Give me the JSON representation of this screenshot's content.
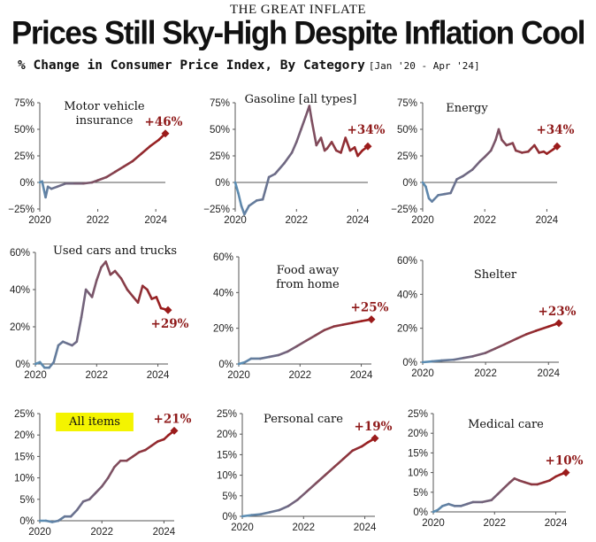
{
  "header": {
    "kicker": "THE GREAT INFLATE",
    "title": "Prices Still Sky-High Despite Inflation Cool",
    "subtitle": "% Change in Consumer Price Index, By Category",
    "date_range": "[Jan '20 - Apr '24]"
  },
  "colors": {
    "start": "#5b8db3",
    "end": "#9b1b1b",
    "highlight": "#f4f400",
    "axis": "#555555"
  },
  "chart_data": [
    {
      "type": "line",
      "title": "Motor vehicle insurance",
      "title_lines": [
        "Motor vehicle",
        "insurance"
      ],
      "xlim": [
        2020,
        2024.33
      ],
      "xticks": [
        "2020",
        "2022",
        "2024"
      ],
      "ylim": [
        -25,
        75
      ],
      "yticks": [
        -25,
        0,
        25,
        50,
        75
      ],
      "yticklabels": [
        "−25%",
        "0%",
        "25%",
        "50%",
        "75%"
      ],
      "end_label": "+46%",
      "x": [
        2020,
        2020.08,
        2020.2,
        2020.28,
        2020.4,
        2020.6,
        2020.9,
        2021.2,
        2021.5,
        2021.8,
        2022,
        2022.3,
        2022.6,
        2022.9,
        2023.2,
        2023.5,
        2023.8,
        2024.1,
        2024.33
      ],
      "y": [
        0,
        1,
        -14,
        -4,
        -6,
        -4,
        -1,
        -1,
        -1,
        0,
        2,
        5,
        10,
        15,
        20,
        27,
        34,
        40,
        46
      ]
    },
    {
      "type": "line",
      "title": "Gasoline [all types]",
      "title_lines": [
        "Gasoline [all types]"
      ],
      "xlim": [
        2020,
        2024.33
      ],
      "xticks": [
        "2020",
        "2022",
        "2024"
      ],
      "ylim": [
        -25,
        75
      ],
      "yticks": [
        -25,
        0,
        25,
        50,
        75
      ],
      "yticklabels": [
        "−25%",
        "0%",
        "25%",
        "50%",
        "75%"
      ],
      "end_label": "+34%",
      "x": [
        2020,
        2020.1,
        2020.2,
        2020.3,
        2020.45,
        2020.7,
        2020.9,
        2021.1,
        2021.3,
        2021.6,
        2021.85,
        2022,
        2022.15,
        2022.3,
        2022.42,
        2022.5,
        2022.65,
        2022.8,
        2022.92,
        2023,
        2023.15,
        2023.3,
        2023.45,
        2023.6,
        2023.75,
        2023.9,
        2024,
        2024.15,
        2024.33
      ],
      "y": [
        0,
        -10,
        -22,
        -30,
        -22,
        -17,
        -16,
        5,
        8,
        18,
        28,
        38,
        50,
        62,
        72,
        58,
        35,
        42,
        30,
        32,
        38,
        30,
        28,
        42,
        30,
        33,
        25,
        30,
        34
      ]
    },
    {
      "type": "line",
      "title": "Energy",
      "title_lines": [
        "Energy"
      ],
      "xlim": [
        2020,
        2024.33
      ],
      "xticks": [
        "2020",
        "2022",
        "2024"
      ],
      "ylim": [
        -25,
        75
      ],
      "yticks": [
        -25,
        0,
        25,
        50,
        75
      ],
      "yticklabels": [
        "−25%",
        "0%",
        "25%",
        "50%",
        "75%"
      ],
      "end_label": "+34%",
      "x": [
        2020,
        2020.1,
        2020.2,
        2020.3,
        2020.5,
        2020.7,
        2020.9,
        2021.1,
        2021.3,
        2021.6,
        2021.85,
        2022,
        2022.2,
        2022.35,
        2022.45,
        2022.55,
        2022.7,
        2022.9,
        2023,
        2023.2,
        2023.4,
        2023.6,
        2023.75,
        2023.9,
        2024,
        2024.2,
        2024.33
      ],
      "y": [
        0,
        -4,
        -15,
        -18,
        -12,
        -11,
        -10,
        3,
        6,
        12,
        20,
        24,
        30,
        40,
        50,
        40,
        35,
        37,
        30,
        28,
        29,
        35,
        28,
        29,
        27,
        31,
        34
      ]
    },
    {
      "type": "line",
      "title": "Used cars and trucks",
      "title_lines": [
        "Used cars and trucks"
      ],
      "xlim": [
        2020,
        2024.33
      ],
      "xticks": [
        "2020",
        "2022",
        "2024"
      ],
      "ylim": [
        0,
        60
      ],
      "yticks": [
        0,
        20,
        40,
        60
      ],
      "yticklabels": [
        "0%",
        "20%",
        "40%",
        "60%"
      ],
      "end_label": "+29%",
      "x": [
        2020,
        2020.15,
        2020.3,
        2020.45,
        2020.6,
        2020.75,
        2020.9,
        2021.05,
        2021.2,
        2021.35,
        2021.5,
        2021.65,
        2021.75,
        2021.85,
        2022,
        2022.15,
        2022.3,
        2022.45,
        2022.6,
        2022.8,
        2023,
        2023.2,
        2023.35,
        2023.5,
        2023.65,
        2023.8,
        2023.95,
        2024.1,
        2024.33
      ],
      "y": [
        0,
        1,
        -2,
        -2,
        1,
        10,
        12,
        11,
        10,
        12,
        25,
        40,
        38,
        36,
        45,
        52,
        55,
        48,
        50,
        46,
        40,
        36,
        33,
        42,
        40,
        35,
        36,
        30,
        29
      ]
    },
    {
      "type": "line",
      "title": "Food away from home",
      "title_lines": [
        "Food away",
        "from home"
      ],
      "xlim": [
        2020,
        2024.33
      ],
      "xticks": [
        "2020",
        "2022",
        "2024"
      ],
      "ylim": [
        0,
        60
      ],
      "yticks": [
        0,
        20,
        40,
        60
      ],
      "yticklabels": [
        "0%",
        "20%",
        "40%",
        "60%"
      ],
      "end_label": "+25%",
      "x": [
        2020,
        2020.2,
        2020.4,
        2020.7,
        2021,
        2021.3,
        2021.6,
        2021.9,
        2022.2,
        2022.5,
        2022.8,
        2023.1,
        2023.4,
        2023.7,
        2024,
        2024.33
      ],
      "y": [
        0,
        1,
        3,
        3,
        4,
        5,
        7,
        10,
        13,
        16,
        19,
        21,
        22,
        23,
        24,
        25
      ]
    },
    {
      "type": "line",
      "title": "Shelter",
      "title_lines": [
        "Shelter"
      ],
      "xlim": [
        2020,
        2024.33
      ],
      "xticks": [
        "2020",
        "2022",
        "2024"
      ],
      "ylim": [
        0,
        60
      ],
      "yticks": [
        0,
        20,
        40,
        60
      ],
      "yticklabels": [
        "0%",
        "20%",
        "40%",
        "60%"
      ],
      "end_label": "+23%",
      "x": [
        2020,
        2020.3,
        2020.6,
        2021,
        2021.3,
        2021.6,
        2022,
        2022.3,
        2022.6,
        2023,
        2023.3,
        2023.6,
        2024,
        2024.33
      ],
      "y": [
        0,
        0.5,
        1,
        1.5,
        2.5,
        3.5,
        5.5,
        8,
        10.5,
        14,
        16.5,
        18.5,
        21,
        23
      ]
    },
    {
      "type": "line",
      "title": "All items",
      "title_lines": [
        "All items"
      ],
      "highlight": true,
      "xlim": [
        2020,
        2024.33
      ],
      "xticks": [
        "2020",
        "2022",
        "2024"
      ],
      "ylim": [
        0,
        25
      ],
      "yticks": [
        0,
        5,
        10,
        15,
        20,
        25
      ],
      "yticklabels": [
        "0%",
        "5%",
        "10%",
        "15%",
        "20%",
        "25%"
      ],
      "end_label": "+21%",
      "x": [
        2020,
        2020.2,
        2020.4,
        2020.6,
        2020.8,
        2021,
        2021.2,
        2021.4,
        2021.6,
        2021.8,
        2022,
        2022.2,
        2022.4,
        2022.6,
        2022.8,
        2023,
        2023.2,
        2023.4,
        2023.6,
        2023.8,
        2024,
        2024.15,
        2024.33
      ],
      "y": [
        0,
        0,
        -0.3,
        0,
        1,
        1,
        2.5,
        4.5,
        5,
        6.5,
        8,
        10,
        12.5,
        14,
        14,
        15,
        16,
        16.5,
        17.5,
        18.5,
        19,
        20,
        21
      ]
    },
    {
      "type": "line",
      "title": "Personal care",
      "title_lines": [
        "Personal care"
      ],
      "xlim": [
        2020,
        2024.33
      ],
      "xticks": [
        "2020",
        "2022",
        "2024"
      ],
      "ylim": [
        0,
        25
      ],
      "yticks": [
        0,
        5,
        10,
        15,
        20,
        25
      ],
      "yticklabels": [
        "0%",
        "5%",
        "10%",
        "15%",
        "20%",
        "25%"
      ],
      "end_label": "+19%",
      "x": [
        2020,
        2020.3,
        2020.6,
        2020.9,
        2021.2,
        2021.5,
        2021.8,
        2022.1,
        2022.4,
        2022.7,
        2023,
        2023.3,
        2023.6,
        2023.9,
        2024.1,
        2024.33
      ],
      "y": [
        0,
        0.3,
        0.5,
        1,
        1.5,
        2.5,
        4,
        6,
        8,
        10,
        12,
        14,
        16,
        17,
        18,
        19
      ]
    },
    {
      "type": "line",
      "title": "Medical care",
      "title_lines": [
        "Medical care"
      ],
      "xlim": [
        2020,
        2024.33
      ],
      "xticks": [
        "2020",
        "2022",
        "2024"
      ],
      "ylim": [
        0,
        25
      ],
      "yticks": [
        0,
        5,
        10,
        15,
        20,
        25
      ],
      "yticklabels": [
        "0%",
        "5%",
        "10%",
        "15%",
        "20%",
        "25%"
      ],
      "end_label": "+10%",
      "x": [
        2020,
        2020.15,
        2020.3,
        2020.5,
        2020.7,
        2020.9,
        2021.1,
        2021.3,
        2021.6,
        2021.9,
        2022.1,
        2022.3,
        2022.5,
        2022.65,
        2022.8,
        2023,
        2023.2,
        2023.4,
        2023.6,
        2023.8,
        2024,
        2024.15,
        2024.33
      ],
      "y": [
        0,
        0.5,
        1.5,
        2,
        1.5,
        1.5,
        2,
        2.5,
        2.5,
        3,
        4.5,
        6,
        7.5,
        8.5,
        8,
        7.5,
        7,
        7,
        7.5,
        8,
        9,
        9.5,
        10
      ]
    }
  ]
}
